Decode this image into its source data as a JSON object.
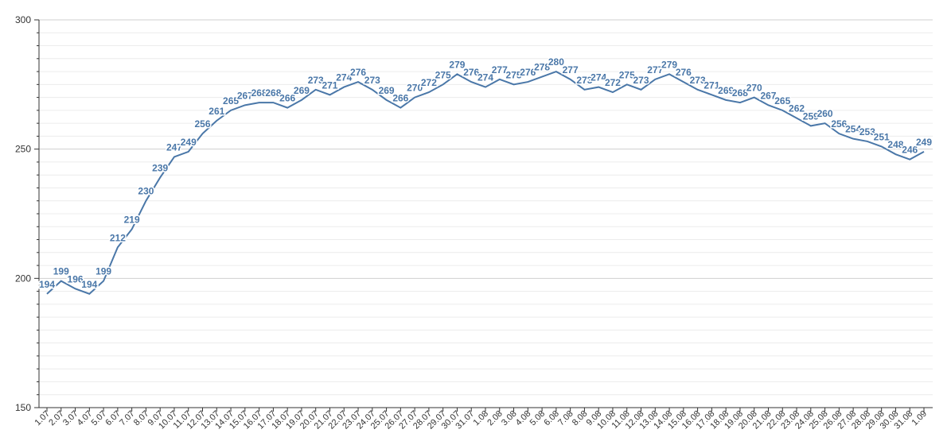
{
  "chart_data": {
    "type": "line",
    "title": "",
    "xlabel": "",
    "ylabel": "",
    "ylim": [
      150,
      300
    ],
    "yticks": [
      150,
      200,
      250,
      300
    ],
    "grid": true,
    "legend": "none",
    "line_color": "#4a77a8",
    "label_color": "#4a77a8",
    "categories": [
      "1.07",
      "2.07",
      "3.07",
      "4.07",
      "5.07",
      "6.07",
      "7.07",
      "8.07",
      "9.07",
      "10.07",
      "11.07",
      "12.07",
      "13.07",
      "14.07",
      "15.07",
      "16.07",
      "17.07",
      "18.07",
      "19.07",
      "20.07",
      "21.07",
      "22.07",
      "23.07",
      "24.07",
      "25.07",
      "26.07",
      "27.07",
      "28.07",
      "29.07",
      "30.07",
      "31.07",
      "1.08",
      "2.08",
      "3.08",
      "4.08",
      "5.08",
      "6.08",
      "7.08",
      "8.08",
      "9.08",
      "10.08",
      "11.08",
      "12.08",
      "13.08",
      "14.08",
      "15.08",
      "16.08",
      "17.08",
      "18.08",
      "19.08",
      "20.08",
      "21.08",
      "22.08",
      "23.08",
      "24.08",
      "25.08",
      "26.08",
      "27.08",
      "28.08",
      "29.08",
      "30.08",
      "31.08",
      "1.09"
    ],
    "values": [
      194,
      199,
      196,
      194,
      199,
      212,
      219,
      230,
      239,
      247,
      249,
      256,
      261,
      265,
      267,
      268,
      268,
      266,
      269,
      273,
      271,
      274,
      276,
      273,
      269,
      266,
      270,
      272,
      275,
      279,
      276,
      274,
      277,
      275,
      276,
      278,
      280,
      277,
      273,
      274,
      272,
      275,
      273,
      277,
      279,
      276,
      273,
      271,
      269,
      268,
      270,
      267,
      265,
      262,
      259,
      260,
      256,
      254,
      253,
      251,
      248,
      246,
      249
    ]
  }
}
